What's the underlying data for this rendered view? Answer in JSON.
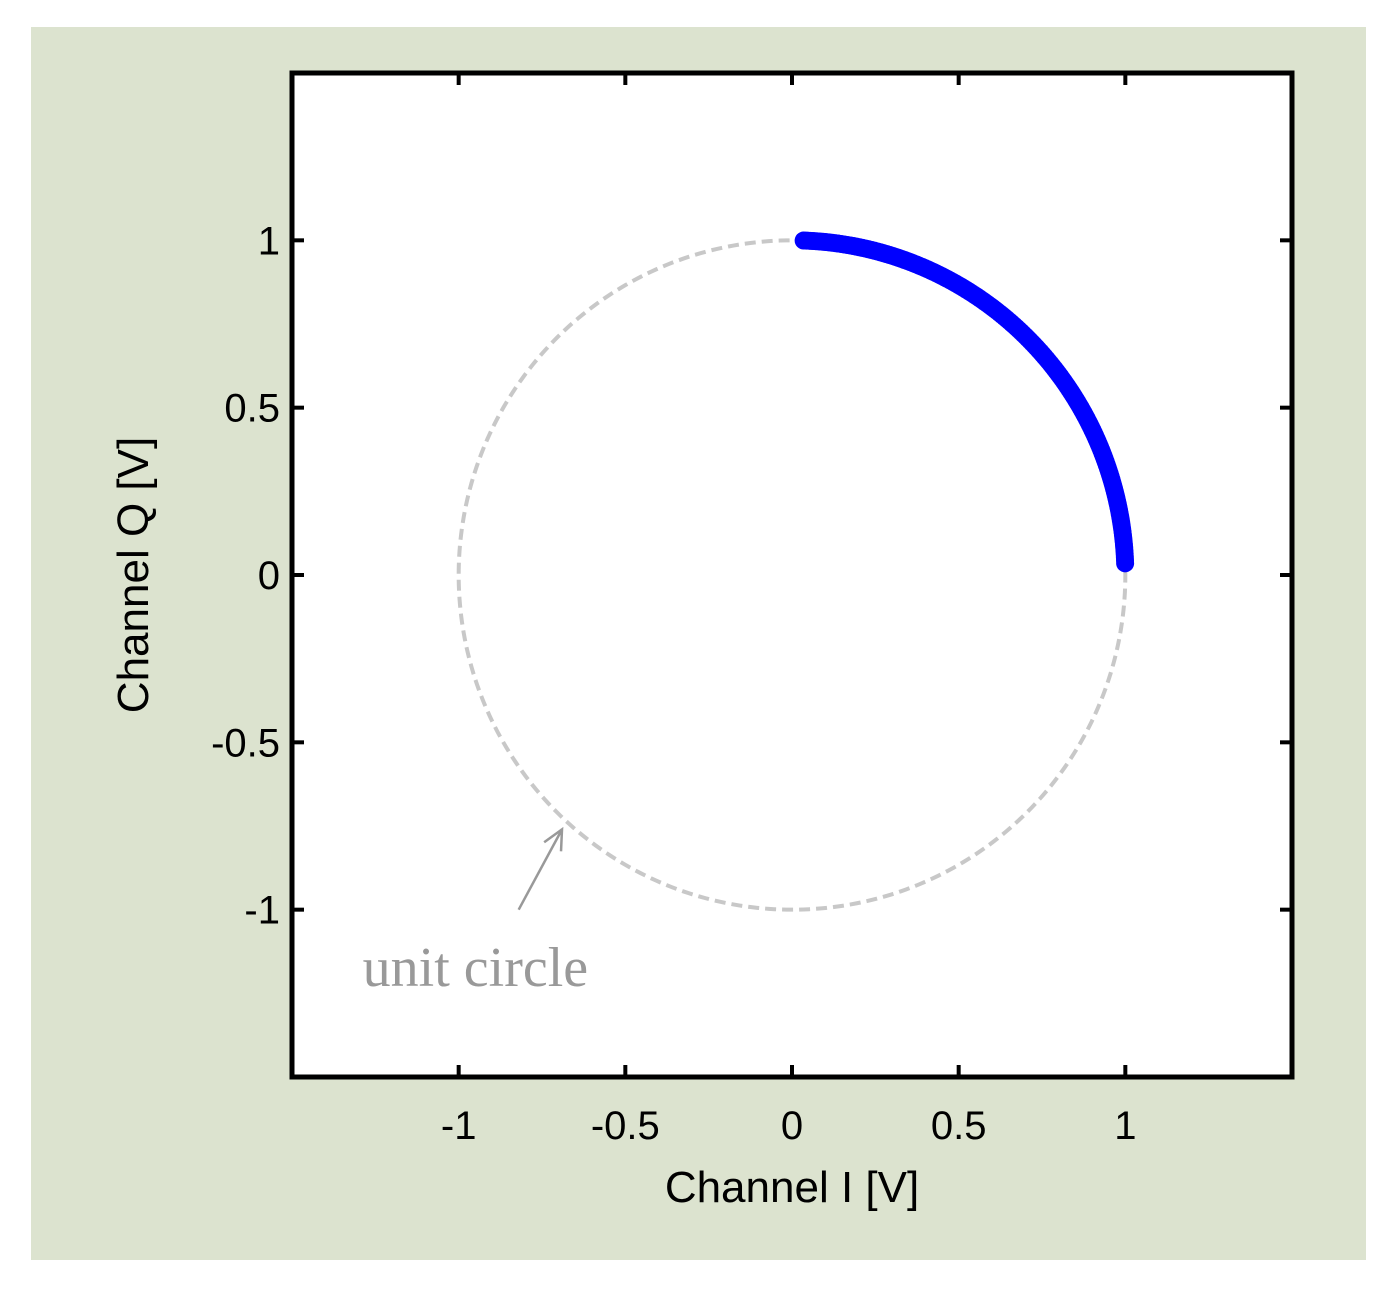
{
  "colors": {
    "figure_background": "#dce3cf",
    "axes_background": "#ffffff",
    "axes_border": "#000000",
    "unit_circle": "#c8c8c8",
    "data_arc": "#0000ff",
    "annotation": "#999999"
  },
  "chart_data": {
    "type": "scatter",
    "title": "",
    "xlabel": "Channel I [V]",
    "ylabel": "Channel Q [V]",
    "xlim": [
      -1.5,
      1.5
    ],
    "ylim": [
      -1.5,
      1.5
    ],
    "xticks": [
      -1,
      -0.5,
      0,
      0.5,
      1
    ],
    "yticks": [
      -1,
      -0.5,
      0,
      0.5,
      1
    ],
    "xtick_labels": [
      "-1",
      "-0.5",
      "0",
      "0.5",
      "1"
    ],
    "ytick_labels": [
      "-1",
      "-0.5",
      "0",
      "0.5",
      "1"
    ],
    "grid": false,
    "aspect": "equal",
    "series": [
      {
        "style": "dashed-line",
        "shape": "circle",
        "center": [
          0,
          0
        ],
        "radius": 1
      },
      {
        "style": "markers",
        "shape": "arc",
        "center": [
          0,
          0
        ],
        "radius": 1,
        "angle_range_deg": [
          2,
          88
        ]
      }
    ],
    "annotations": [
      {
        "text": "unit circle",
        "text_anchor_point": [
          -1.0,
          -1.18
        ],
        "arrow_from": [
          -0.82,
          -1.0
        ],
        "arrow_to": [
          -0.69,
          -0.76
        ]
      }
    ]
  }
}
